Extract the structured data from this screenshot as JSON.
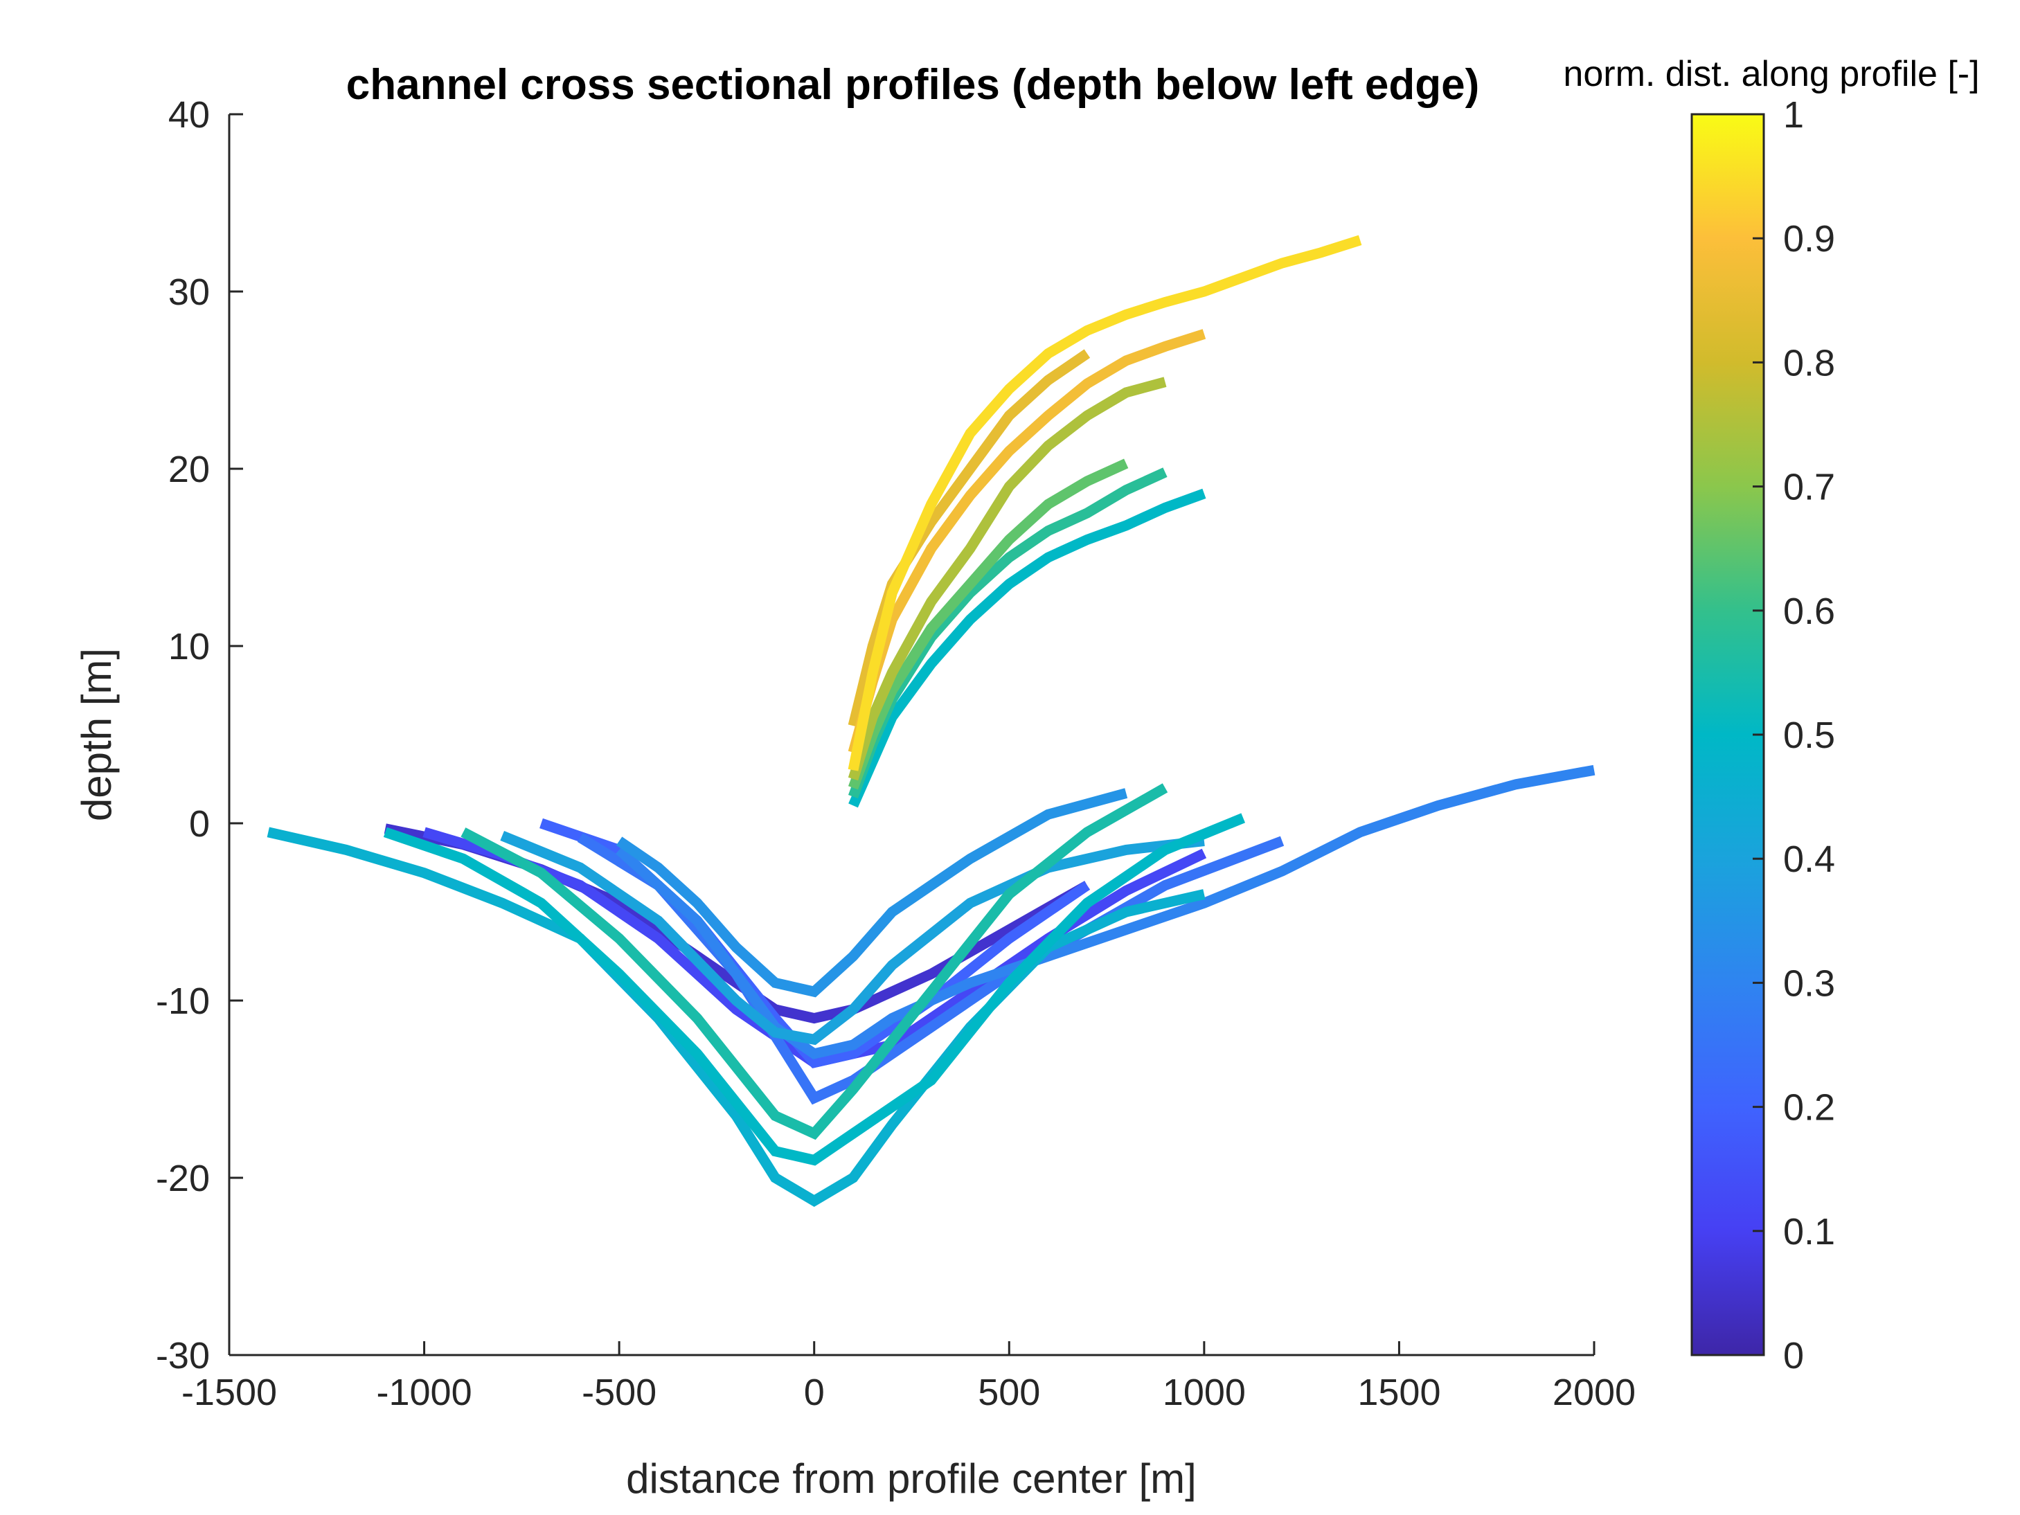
{
  "chart_data": {
    "type": "line",
    "title": "channel cross sectional profiles (depth below left edge)",
    "xlabel": "distance from profile center [m]",
    "ylabel": "depth [m]",
    "xlim": [
      -1500,
      2000
    ],
    "ylim": [
      -30,
      40
    ],
    "xticks": [
      -1500,
      -1000,
      -500,
      0,
      500,
      1000,
      1500,
      2000
    ],
    "yticks": [
      -30,
      -20,
      -10,
      0,
      10,
      20,
      30,
      40
    ],
    "xtick_labels": [
      "-1500",
      "-1000",
      "-500",
      "0",
      "500",
      "1000",
      "1500",
      "2000"
    ],
    "ytick_labels": [
      "-30",
      "-20",
      "-10",
      "0",
      "10",
      "20",
      "30",
      "40"
    ],
    "grid": false,
    "colorbar": {
      "label": "norm. dist. along profile [-]",
      "colormap": "parula",
      "range": [
        0,
        1
      ],
      "ticks": [
        0,
        0.1,
        0.2,
        0.3,
        0.4,
        0.5,
        0.6,
        0.7,
        0.8,
        0.9,
        1
      ],
      "tick_labels": [
        "0",
        "0.1",
        "0.2",
        "0.3",
        "0.4",
        "0.5",
        "0.6",
        "0.7",
        "0.8",
        "0.9",
        "1"
      ]
    },
    "series": [
      {
        "color_value": 0.05,
        "x": [
          -1100,
          -900,
          -700,
          -500,
          -300,
          -100,
          0,
          100,
          300,
          500,
          700
        ],
        "y": [
          -0.3,
          -1.2,
          -2.6,
          -4.5,
          -7.5,
          -10.5,
          -11.0,
          -10.5,
          -8.5,
          -6.0,
          -3.5
        ]
      },
      {
        "color_value": 0.12,
        "x": [
          -1000,
          -800,
          -600,
          -400,
          -200,
          0,
          200,
          400,
          600,
          800,
          1000
        ],
        "y": [
          -0.5,
          -1.8,
          -3.5,
          -6.5,
          -10.5,
          -13.5,
          -12.5,
          -9.5,
          -6.5,
          -3.8,
          -1.7
        ]
      },
      {
        "color_value": 0.2,
        "x": [
          -700,
          -500,
          -300,
          -100,
          0,
          100,
          300,
          500,
          700
        ],
        "y": [
          0,
          -1.5,
          -5.5,
          -11.0,
          -13.5,
          -13.0,
          -10.0,
          -6.5,
          -3.5
        ]
      },
      {
        "color_value": 0.25,
        "x": [
          -600,
          -400,
          -200,
          -100,
          0,
          100,
          300,
          500,
          700,
          900,
          1200
        ],
        "y": [
          -0.8,
          -3.5,
          -8.5,
          -12.0,
          -15.5,
          -14.5,
          -11.5,
          -8.5,
          -6.0,
          -3.5,
          -1.0
        ]
      },
      {
        "color_value": 0.3,
        "x": [
          -500,
          -300,
          -100,
          0,
          100,
          200,
          400,
          600,
          800,
          1000,
          1200,
          1400,
          1600,
          1800,
          2000
        ],
        "y": [
          -1.5,
          -5.5,
          -11.5,
          -13.0,
          -12.5,
          -11.0,
          -9.0,
          -7.5,
          -6.0,
          -4.5,
          -2.7,
          -0.5,
          1.0,
          2.2,
          3.0
        ]
      },
      {
        "color_value": 0.35,
        "x": [
          -500,
          -400,
          -300,
          -200,
          -100,
          0,
          100,
          200,
          400,
          600,
          800
        ],
        "y": [
          -1.0,
          -2.5,
          -4.5,
          -7.0,
          -9.0,
          -9.5,
          -7.5,
          -5.0,
          -2.0,
          0.5,
          1.7
        ]
      },
      {
        "color_value": 0.4,
        "x": [
          -800,
          -600,
          -400,
          -200,
          -100,
          0,
          100,
          200,
          400,
          600,
          800,
          1000
        ],
        "y": [
          -0.7,
          -2.5,
          -5.5,
          -10.0,
          -11.8,
          -12.2,
          -10.5,
          -8.0,
          -4.5,
          -2.5,
          -1.5,
          -1.0
        ]
      },
      {
        "color_value": 0.46,
        "x": [
          -1400,
          -1200,
          -1000,
          -800,
          -600,
          -400,
          -200,
          -100,
          0,
          100,
          200,
          400,
          600,
          800,
          1000
        ],
        "y": [
          -0.5,
          -1.5,
          -2.8,
          -4.5,
          -6.5,
          -11.0,
          -16.5,
          -20.0,
          -21.3,
          -20.0,
          -17.0,
          -11.5,
          -7.0,
          -5.0,
          -4.0
        ]
      },
      {
        "color_value": 0.5,
        "x": [
          -1100,
          -900,
          -700,
          -500,
          -300,
          -100,
          0,
          100,
          300,
          500,
          700,
          900,
          1100
        ],
        "y": [
          -0.5,
          -2.0,
          -4.5,
          -8.5,
          -13.0,
          -18.5,
          -19.0,
          -17.5,
          -14.5,
          -9.0,
          -4.5,
          -1.5,
          0.3
        ]
      },
      {
        "color_value": 0.55,
        "x": [
          -900,
          -700,
          -500,
          -300,
          -100,
          0,
          100,
          300,
          500,
          700,
          900
        ],
        "y": [
          -0.5,
          -2.8,
          -6.5,
          -11.0,
          -16.5,
          -17.5,
          -15.0,
          -9.5,
          -4.0,
          -0.5,
          2.0
        ]
      },
      {
        "color_value": 0.5,
        "x": [
          100,
          150,
          200,
          300,
          400,
          500,
          600,
          700,
          800,
          900,
          1000
        ],
        "y": [
          1.0,
          3.5,
          6.0,
          9.0,
          11.5,
          13.5,
          15.0,
          16.0,
          16.8,
          17.8,
          18.6
        ]
      },
      {
        "color_value": 0.58,
        "x": [
          100,
          150,
          200,
          300,
          400,
          500,
          600,
          700,
          800,
          900
        ],
        "y": [
          1.5,
          4.5,
          7.0,
          10.5,
          13.0,
          15.0,
          16.5,
          17.5,
          18.8,
          19.8
        ]
      },
      {
        "color_value": 0.65,
        "x": [
          100,
          150,
          200,
          300,
          400,
          500,
          600,
          700,
          800
        ],
        "y": [
          2.0,
          5.0,
          7.5,
          11.0,
          13.5,
          16.0,
          18.0,
          19.3,
          20.3
        ]
      },
      {
        "color_value": 0.75,
        "x": [
          100,
          150,
          200,
          300,
          400,
          500,
          600,
          700,
          800,
          900
        ],
        "y": [
          2.5,
          6.0,
          8.5,
          12.5,
          15.5,
          19.0,
          21.3,
          23.0,
          24.3,
          24.9
        ]
      },
      {
        "color_value": 0.85,
        "x": [
          100,
          150,
          200,
          300,
          400,
          500,
          600,
          700
        ],
        "y": [
          5.5,
          10.0,
          13.5,
          17.0,
          20.0,
          23.0,
          25.0,
          26.5
        ]
      },
      {
        "color_value": 0.88,
        "x": [
          100,
          150,
          200,
          300,
          400,
          500,
          600,
          700,
          800,
          900,
          1000
        ],
        "y": [
          4.0,
          8.0,
          11.5,
          15.5,
          18.5,
          21.0,
          23.0,
          24.8,
          26.1,
          26.9,
          27.6
        ]
      },
      {
        "color_value": 0.95,
        "x": [
          100,
          150,
          200,
          300,
          400,
          500,
          600,
          700,
          800,
          900,
          1000,
          1100,
          1200,
          1300,
          1400
        ],
        "y": [
          3.0,
          8.5,
          13.0,
          18.0,
          22.0,
          24.5,
          26.5,
          27.8,
          28.7,
          29.4,
          30.0,
          30.8,
          31.6,
          32.2,
          32.9
        ]
      }
    ]
  }
}
